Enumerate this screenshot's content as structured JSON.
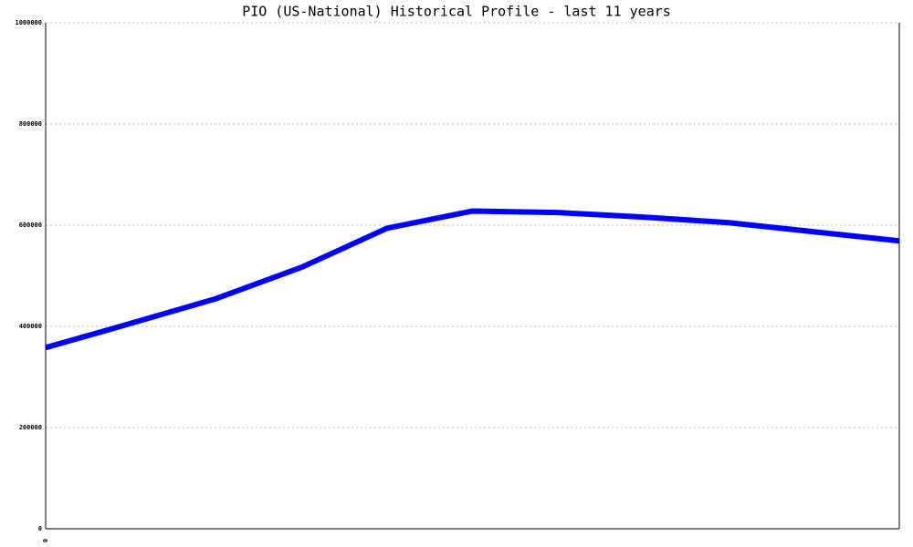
{
  "chart_data": {
    "type": "line",
    "title": "PIO (US-National) Historical Profile - last 11 years",
    "categories": [
      "0",
      null,
      null,
      null,
      null,
      null,
      null,
      null,
      null,
      null,
      null
    ],
    "series": [
      {
        "color": "#0000ff",
        "values": [
          358000,
          406000,
          455000,
          517000,
          594000,
          628000,
          625000,
          616000,
          605000,
          587000,
          569000
        ]
      }
    ],
    "ylim": [
      0,
      1000000
    ],
    "yticks": [
      0,
      200000,
      400000,
      600000,
      800000,
      1000000
    ],
    "grid": true
  }
}
